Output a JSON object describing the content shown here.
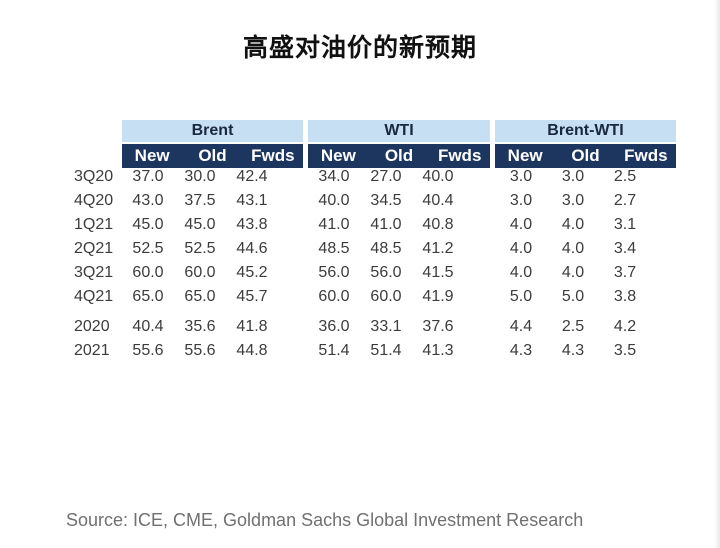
{
  "title": "高盛对油价的新预期",
  "groups": [
    "Brent",
    "WTI",
    "Brent-WTI"
  ],
  "subheaders": [
    "New",
    "Old",
    "Fwds"
  ],
  "rows": [
    {
      "label": "3Q20",
      "values": [
        "37.0",
        "30.0",
        "42.4",
        "34.0",
        "27.0",
        "40.0",
        "3.0",
        "3.0",
        "2.5"
      ]
    },
    {
      "label": "4Q20",
      "values": [
        "43.0",
        "37.5",
        "43.1",
        "40.0",
        "34.5",
        "40.4",
        "3.0",
        "3.0",
        "2.7"
      ]
    },
    {
      "label": "1Q21",
      "values": [
        "45.0",
        "45.0",
        "43.8",
        "41.0",
        "41.0",
        "40.8",
        "4.0",
        "4.0",
        "3.1"
      ]
    },
    {
      "label": "2Q21",
      "values": [
        "52.5",
        "52.5",
        "44.6",
        "48.5",
        "48.5",
        "41.2",
        "4.0",
        "4.0",
        "3.4"
      ]
    },
    {
      "label": "3Q21",
      "values": [
        "60.0",
        "60.0",
        "45.2",
        "56.0",
        "56.0",
        "41.5",
        "4.0",
        "4.0",
        "3.7"
      ]
    },
    {
      "label": "4Q21",
      "values": [
        "65.0",
        "65.0",
        "45.7",
        "60.0",
        "60.0",
        "41.9",
        "5.0",
        "5.0",
        "3.8"
      ]
    },
    {
      "label": "2020",
      "values": [
        "40.4",
        "35.6",
        "41.8",
        "36.0",
        "33.1",
        "37.6",
        "4.4",
        "2.5",
        "4.2"
      ]
    },
    {
      "label": "2021",
      "values": [
        "55.6",
        "55.6",
        "44.8",
        "51.4",
        "51.4",
        "41.3",
        "4.3",
        "4.3",
        "3.5"
      ]
    }
  ],
  "source": "Source: ICE, CME, Goldman Sachs Global Investment Research"
}
